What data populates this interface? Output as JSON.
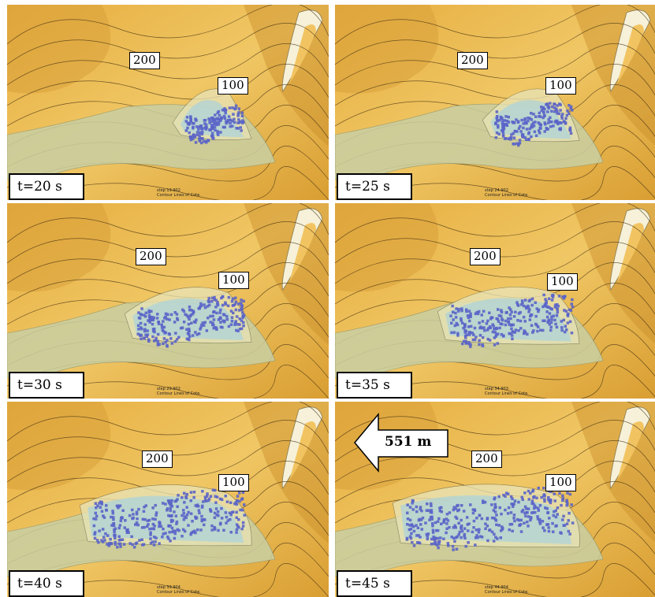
{
  "panels": [
    {
      "time": "t=20 s",
      "step": "step 19.902",
      "contour_note": "Contour Lines of Cote.",
      "contour_high": "200",
      "contour_low": "100"
    },
    {
      "time": "t=25 s",
      "step": "step 24.902",
      "contour_note": "Contour Lines of Cote.",
      "contour_high": "200",
      "contour_low": "100"
    },
    {
      "time": "t=30 s",
      "step": "step 29.902",
      "contour_note": "Contour Lines of Cote.",
      "contour_high": "200",
      "contour_low": "100"
    },
    {
      "time": "t=35 s",
      "step": "step 34.903",
      "contour_note": "Contour Lines of Cote.",
      "contour_high": "200",
      "contour_low": "100"
    },
    {
      "time": "t=40 s",
      "step": "step 39.904",
      "contour_note": "Contour Lines of Cote.",
      "contour_high": "200",
      "contour_low": "100"
    },
    {
      "time": "t=45 s",
      "step": "step 44.904",
      "contour_note": "Contour Lines of Cote.",
      "contour_high": "200",
      "contour_low": "100"
    }
  ],
  "runout_arrow": {
    "label": "551 m"
  },
  "colors": {
    "terrain": "#e8b44a",
    "terrain_light": "#f2cd6e",
    "deposit": "#c9cfa3",
    "debris": "#5a64c8",
    "flow": "#a9d3dd",
    "contour": "#3a2a10"
  }
}
